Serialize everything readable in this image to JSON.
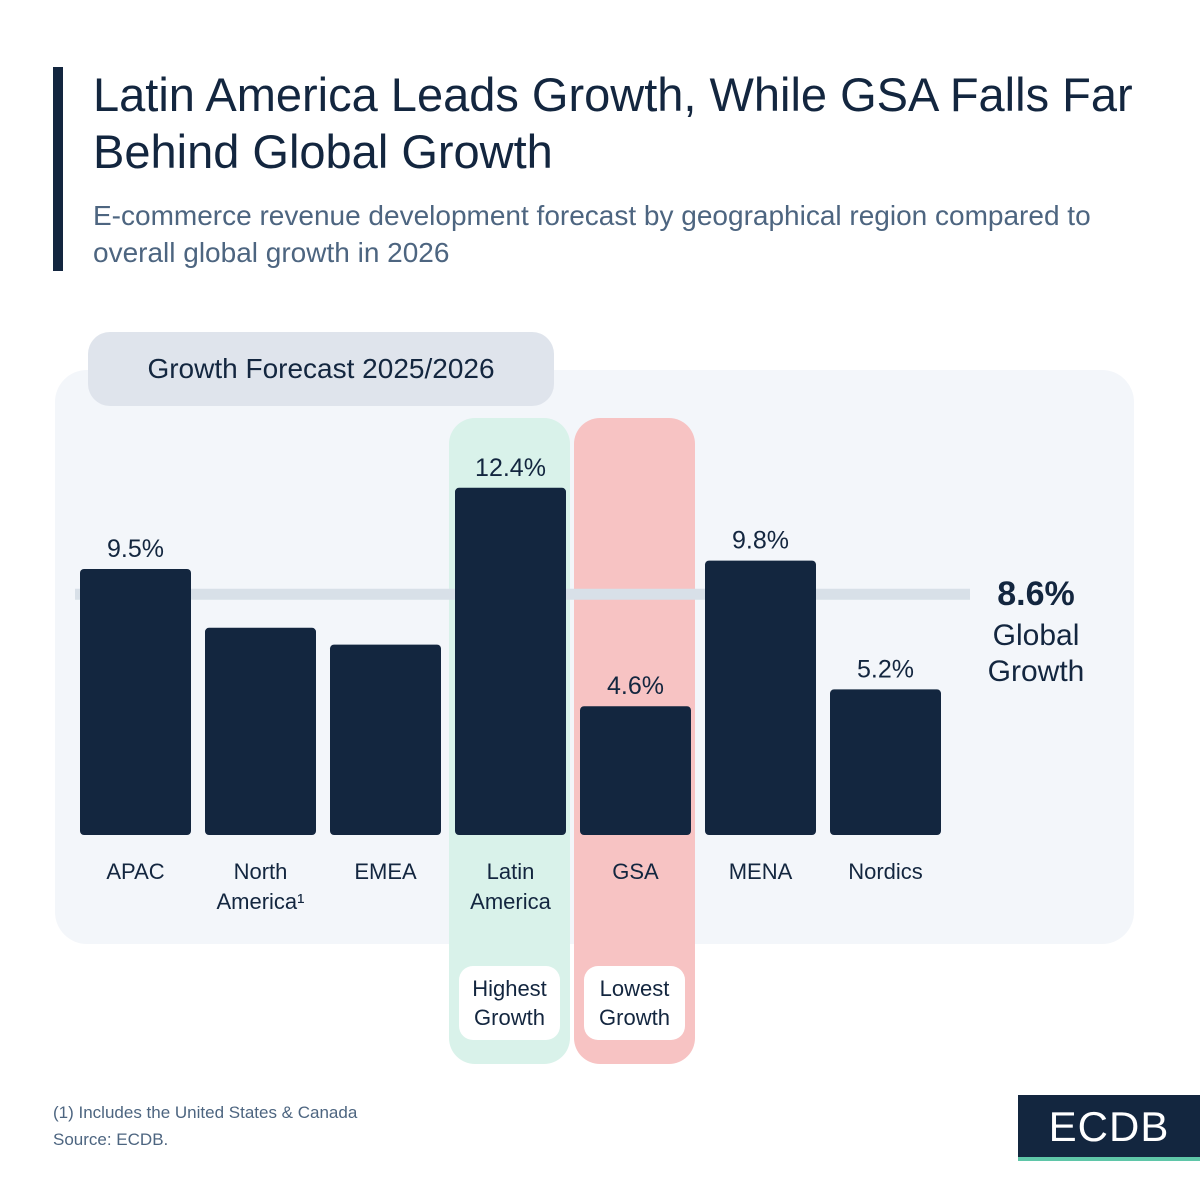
{
  "header": {
    "title": "Latin America Leads Growth, While GSA Falls Far Behind Global Growth",
    "subtitle": "E-commerce revenue development forecast by geographical region compared to overall global growth in 2026"
  },
  "chart_data": {
    "type": "bar",
    "panel_label": "Growth Forecast 2025/2026",
    "categories": [
      "APAC",
      "North America¹",
      "EMEA",
      "Latin America",
      "GSA",
      "MENA",
      "Nordics"
    ],
    "values": [
      9.5,
      7.4,
      6.8,
      12.4,
      4.6,
      9.8,
      5.2
    ],
    "value_labels": [
      "9.5%",
      null,
      null,
      "12.4%",
      "4.6%",
      "9.8%",
      "5.2%"
    ],
    "color": "#13263f",
    "reference": {
      "value": 8.6,
      "label": "8.6%",
      "text": "Global Growth",
      "color": "#d8e0e8"
    },
    "highlights": [
      {
        "category": "Latin America",
        "label": "Highest Growth",
        "color": "#d9f2ea"
      },
      {
        "category": "GSA",
        "label": "Lowest Growth",
        "color": "#f7c3c3"
      }
    ]
  },
  "footer": {
    "note": "(1) Includes the United States & Canada",
    "source": "Source: ECDB.",
    "logo": "ECDB"
  }
}
